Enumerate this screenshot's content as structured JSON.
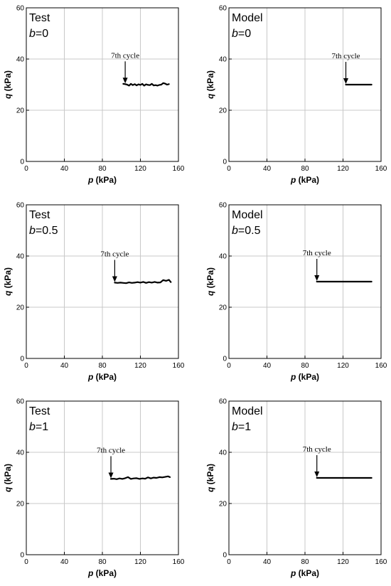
{
  "chart_data": [
    {
      "type": "line",
      "label_line1": "Test",
      "label_b_prefix": "b",
      "label_b_value": "=0",
      "annotation": "7th cycle",
      "annotation_point": [
        104,
        30.2
      ],
      "xlabel_var": "p",
      "xlabel_unit": " (kPa)",
      "ylabel_var": "q",
      "ylabel_unit": " (kPa)",
      "xlim": [
        0,
        160
      ],
      "ylim": [
        0,
        60
      ],
      "xticks": [
        0,
        40,
        80,
        120,
        160
      ],
      "yticks": [
        0,
        20,
        40,
        60
      ],
      "grid": true,
      "series": [
        {
          "x": [
            102,
            104,
            106,
            108,
            110,
            112,
            114,
            116,
            118,
            120,
            122,
            124,
            126,
            128,
            130,
            132,
            134,
            136,
            138,
            140,
            142,
            144,
            146,
            148,
            150
          ],
          "y": [
            30.3,
            30.2,
            30.0,
            29.6,
            30.3,
            29.8,
            30.2,
            29.7,
            30.1,
            29.9,
            30.3,
            29.6,
            30.1,
            29.9,
            29.8,
            30.3,
            29.7,
            29.8,
            29.6,
            29.9,
            30.0,
            30.6,
            30.4,
            30.0,
            30.2
          ]
        }
      ]
    },
    {
      "type": "line",
      "label_line1": "Model",
      "label_b_prefix": "b",
      "label_b_value": "=0",
      "annotation": "7th cycle",
      "annotation_point": [
        123,
        30.0
      ],
      "xlabel_var": "p",
      "xlabel_unit": " (kPa)",
      "ylabel_var": "q",
      "ylabel_unit": " (kPa)",
      "xlim": [
        0,
        160
      ],
      "ylim": [
        0,
        60
      ],
      "xticks": [
        0,
        40,
        80,
        120,
        160
      ],
      "yticks": [
        0,
        20,
        40,
        60
      ],
      "grid": true,
      "series": [
        {
          "x": [
            123,
            150
          ],
          "y": [
            30.0,
            30.0
          ]
        }
      ]
    },
    {
      "type": "line",
      "label_line1": "Test",
      "label_b_prefix": "b",
      "label_b_value": "=0.5",
      "annotation": "7th cycle",
      "annotation_point": [
        93,
        29.6
      ],
      "xlabel_var": "p",
      "xlabel_unit": " (kPa)",
      "ylabel_var": "q",
      "ylabel_unit": " (kPa)",
      "xlim": [
        0,
        160
      ],
      "ylim": [
        0,
        60
      ],
      "xticks": [
        0,
        40,
        80,
        120,
        160
      ],
      "yticks": [
        0,
        20,
        40,
        60
      ],
      "grid": true,
      "series": [
        {
          "x": [
            93,
            96,
            99,
            102,
            105,
            108,
            111,
            114,
            117,
            120,
            123,
            126,
            129,
            132,
            135,
            138,
            141,
            144,
            147,
            150,
            152
          ],
          "y": [
            29.6,
            29.5,
            29.6,
            29.5,
            29.4,
            29.7,
            29.5,
            29.6,
            29.8,
            29.6,
            29.9,
            29.5,
            29.8,
            29.6,
            29.9,
            29.6,
            29.7,
            30.6,
            30.3,
            30.7,
            29.8
          ]
        }
      ]
    },
    {
      "type": "line",
      "label_line1": "Model",
      "label_b_prefix": "b",
      "label_b_value": "=0.5",
      "annotation": "7th cycle",
      "annotation_point": [
        92.5,
        30.0
      ],
      "xlabel_var": "p",
      "xlabel_unit": " (kPa)",
      "ylabel_var": "q",
      "ylabel_unit": " (kPa)",
      "xlim": [
        0,
        160
      ],
      "ylim": [
        0,
        60
      ],
      "xticks": [
        0,
        40,
        80,
        120,
        160
      ],
      "yticks": [
        0,
        20,
        40,
        60
      ],
      "grid": true,
      "series": [
        {
          "x": [
            92.5,
            150
          ],
          "y": [
            30.0,
            30.0
          ]
        }
      ]
    },
    {
      "type": "line",
      "label_line1": "Test",
      "label_b_prefix": "b",
      "label_b_value": "=1",
      "annotation": "7th cycle",
      "annotation_point": [
        89,
        29.6
      ],
      "xlabel_var": "p",
      "xlabel_unit": " (kPa)",
      "ylabel_var": "q",
      "ylabel_unit": " (kPa)",
      "xlim": [
        0,
        160
      ],
      "ylim": [
        0,
        60
      ],
      "xticks": [
        0,
        40,
        80,
        120,
        160
      ],
      "yticks": [
        0,
        20,
        40,
        60
      ],
      "grid": true,
      "series": [
        {
          "x": [
            89,
            92,
            95,
            98,
            101,
            104,
            107,
            110,
            113,
            116,
            119,
            122,
            125,
            128,
            131,
            134,
            137,
            140,
            143,
            146,
            149,
            151
          ],
          "y": [
            29.6,
            29.7,
            29.5,
            29.8,
            29.6,
            29.9,
            30.3,
            29.6,
            29.8,
            29.9,
            29.6,
            29.8,
            29.7,
            30.2,
            29.8,
            30.1,
            30.0,
            30.3,
            30.2,
            30.4,
            30.6,
            30.3
          ]
        }
      ]
    },
    {
      "type": "line",
      "label_line1": "Model",
      "label_b_prefix": "b",
      "label_b_value": "=1",
      "annotation": "7th cycle",
      "annotation_point": [
        92.5,
        30.0
      ],
      "xlabel_var": "p",
      "xlabel_unit": " (kPa)",
      "ylabel_var": "q",
      "ylabel_unit": " (kPa)",
      "xlim": [
        0,
        160
      ],
      "ylim": [
        0,
        60
      ],
      "xticks": [
        0,
        40,
        80,
        120,
        160
      ],
      "yticks": [
        0,
        20,
        40,
        60
      ],
      "grid": true,
      "series": [
        {
          "x": [
            92.5,
            150
          ],
          "y": [
            30.0,
            30.0
          ]
        }
      ]
    }
  ],
  "colors": {
    "grid": "#c8c8c8",
    "axis": "#000000",
    "data": "#000000"
  }
}
